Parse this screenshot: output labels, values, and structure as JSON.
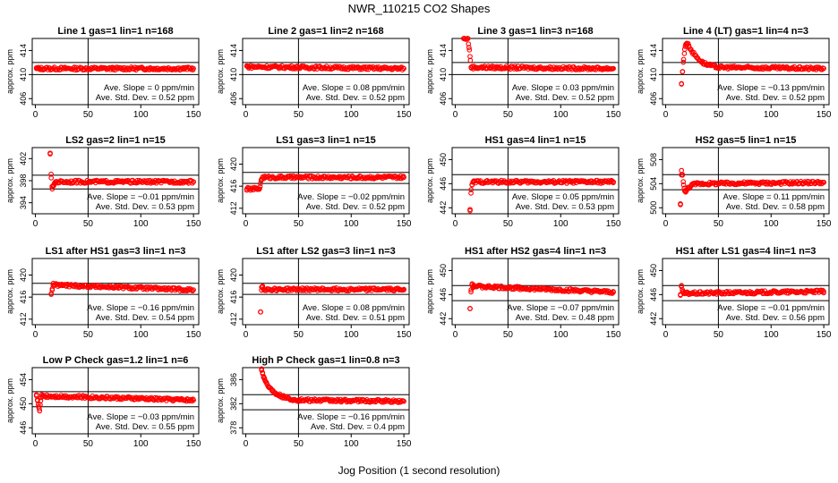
{
  "figure": {
    "title": "NWR_110215  CO2 Shapes",
    "xlabel": "Jog Position (1 second resolution)"
  },
  "colors": {
    "points": "#ff0000",
    "axes": "#000000",
    "background": "#ffffff"
  },
  "chart_data": [
    {
      "type": "scatter",
      "title": "Line 1 gas=1 lin=1 n=168",
      "ylabel": "approx. ppm",
      "xlim": [
        -3,
        155
      ],
      "ylim": [
        405,
        416
      ],
      "xticks": [
        0,
        50,
        100,
        150
      ],
      "yticks": [
        406,
        410,
        414
      ],
      "hlines": [
        410,
        412
      ],
      "vline": 50,
      "slope_text": "Ave. Slope =  0  ppm/min",
      "std_text": "Ave. Std. Dev. =  0.52  ppm",
      "series": [
        {
          "x": [
            1,
            2,
            3,
            4,
            150
          ],
          "y": [
            411.0,
            411.0,
            411.0,
            411.0,
            411.0
          ]
        }
      ]
    },
    {
      "type": "scatter",
      "title": "Line 2 gas=1 lin=2 n=168",
      "ylabel": "approx. ppm",
      "xlim": [
        -3,
        155
      ],
      "ylim": [
        405,
        416
      ],
      "xticks": [
        0,
        50,
        100,
        150
      ],
      "yticks": [
        406,
        410,
        414
      ],
      "hlines": [
        410,
        412
      ],
      "vline": 50,
      "slope_text": "Ave. Slope =  0.08  ppm/min",
      "std_text": "Ave. Std. Dev. =  0.52  ppm",
      "series": [
        {
          "x": [
            1,
            2,
            3,
            150
          ],
          "y": [
            411.4,
            411.3,
            411.3,
            411.0
          ]
        }
      ]
    },
    {
      "type": "scatter",
      "title": "Line 3 gas=1 lin=3 n=168",
      "ylabel": "approx. ppm",
      "xlim": [
        -3,
        155
      ],
      "ylim": [
        405,
        416
      ],
      "xticks": [
        0,
        50,
        100,
        150
      ],
      "yticks": [
        406,
        410,
        414
      ],
      "hlines": [
        410,
        412
      ],
      "vline": 50,
      "slope_text": "Ave. Slope =  0.03  ppm/min",
      "std_text": "Ave. Std. Dev. =  0.52  ppm",
      "series": [
        {
          "x": [
            8,
            12,
            13,
            14,
            15,
            150
          ],
          "y": [
            416.0,
            416.0,
            414.5,
            413.0,
            411.2,
            411.0
          ]
        }
      ]
    },
    {
      "type": "scatter",
      "title": "Line 4 (LT) gas=1 lin=4 n=3",
      "ylabel": "approx. ppm",
      "xlim": [
        -3,
        155
      ],
      "ylim": [
        405,
        416
      ],
      "xticks": [
        0,
        50,
        100,
        150
      ],
      "yticks": [
        406,
        410,
        414
      ],
      "hlines": [
        410,
        412
      ],
      "vline": 50,
      "slope_text": "Ave. Slope = −0.13  ppm/min",
      "std_text": "Ave. Std. Dev. =  0.52  ppm",
      "series": [
        {
          "x": [
            15,
            16,
            17,
            18,
            19,
            20,
            22,
            25,
            30,
            35,
            40,
            50,
            150
          ],
          "y": [
            408.5,
            410.5,
            412.5,
            414.2,
            415.0,
            415.2,
            414.8,
            413.8,
            412.8,
            412.0,
            411.6,
            411.2,
            411.0
          ]
        }
      ]
    },
    {
      "type": "scatter",
      "title": "LS2 gas=2 lin=1 n=15",
      "ylabel": "approx. ppm",
      "xlim": [
        -3,
        155
      ],
      "ylim": [
        392,
        404
      ],
      "xticks": [
        0,
        50,
        100,
        150
      ],
      "yticks": [
        394,
        398,
        402
      ],
      "hlines": [
        396.5,
        399
      ],
      "vline": 50,
      "slope_text": "Ave. Slope = −0.01  ppm/min",
      "std_text": "Ave. Std. Dev. =  0.53  ppm",
      "series": [
        {
          "x": [
            14,
            15,
            16,
            17,
            18,
            19,
            20,
            150
          ],
          "y": [
            403.0,
            398.5,
            396.5,
            397.0,
            397.5,
            397.8,
            397.8,
            397.8
          ]
        }
      ]
    },
    {
      "type": "scatter",
      "title": "LS1 gas=3 lin=1 n=15",
      "ylabel": "approx. ppm",
      "xlim": [
        -3,
        155
      ],
      "ylim": [
        411,
        423
      ],
      "xticks": [
        0,
        50,
        100,
        150
      ],
      "yticks": [
        412,
        416,
        420
      ],
      "hlines": [
        416.5,
        418.5
      ],
      "vline": 50,
      "slope_text": "Ave. Slope = −0.02  ppm/min",
      "std_text": "Ave. Std. Dev. =  0.52  ppm",
      "series": [
        {
          "x": [
            1,
            5,
            10,
            13,
            14,
            15,
            16,
            150
          ],
          "y": [
            415.5,
            415.5,
            415.5,
            415.5,
            416.5,
            417.3,
            417.6,
            417.6
          ]
        }
      ]
    },
    {
      "type": "scatter",
      "title": "HS1 gas=4 lin=1 n=15",
      "ylabel": "approx. ppm",
      "xlim": [
        -3,
        155
      ],
      "ylim": [
        441,
        452
      ],
      "xticks": [
        0,
        50,
        100,
        150
      ],
      "yticks": [
        442,
        446,
        450
      ],
      "hlines": [
        445,
        447.5
      ],
      "vline": 50,
      "slope_text": "Ave. Slope =  0.05  ppm/min",
      "std_text": "Ave. Std. Dev. =  0.53  ppm",
      "series": [
        {
          "x": [
            14,
            15,
            16,
            17,
            150
          ],
          "y": [
            441.5,
            445.0,
            445.8,
            446.3,
            446.3
          ]
        }
      ]
    },
    {
      "type": "scatter",
      "title": "HS2 gas=5 lin=1 n=15",
      "ylabel": "approx. ppm",
      "xlim": [
        -3,
        155
      ],
      "ylim": [
        499,
        510
      ],
      "xticks": [
        0,
        50,
        100,
        150
      ],
      "yticks": [
        500,
        504,
        508
      ],
      "hlines": [
        503,
        505.5
      ],
      "vline": 50,
      "slope_text": "Ave. Slope =  0.11  ppm/min",
      "std_text": "Ave. Std. Dev. =  0.58  ppm",
      "series": [
        {
          "x": [
            14,
            15,
            16,
            17,
            18,
            19,
            20,
            22,
            25,
            30,
            150
          ],
          "y": [
            500.5,
            506.2,
            505.5,
            503.8,
            502.8,
            502.6,
            503.0,
            503.4,
            503.8,
            504.0,
            504.2
          ]
        }
      ]
    },
    {
      "type": "scatter",
      "title": "LS1 after HS1 gas=3 lin=1 n=3",
      "ylabel": "approx. ppm",
      "xlim": [
        -3,
        155
      ],
      "ylim": [
        411,
        423
      ],
      "xticks": [
        0,
        50,
        100,
        150
      ],
      "yticks": [
        412,
        416,
        420
      ],
      "hlines": [
        416.5,
        418.5
      ],
      "vline": 50,
      "slope_text": "Ave. Slope = −0.16  ppm/min",
      "std_text": "Ave. Std. Dev. =  0.54  ppm",
      "series": [
        {
          "x": [
            15,
            16,
            17,
            18,
            150
          ],
          "y": [
            416.5,
            417.5,
            418.5,
            418.2,
            417.3
          ]
        }
      ]
    },
    {
      "type": "scatter",
      "title": "LS1 after LS2 gas=3 lin=1 n=3",
      "ylabel": "approx. ppm",
      "xlim": [
        -3,
        155
      ],
      "ylim": [
        411,
        423
      ],
      "xticks": [
        0,
        50,
        100,
        150
      ],
      "yticks": [
        412,
        416,
        420
      ],
      "hlines": [
        416.5,
        418.5
      ],
      "vline": 50,
      "slope_text": "Ave. Slope =  0.08  ppm/min",
      "std_text": "Ave. Std. Dev. =  0.51  ppm",
      "series": [
        {
          "x": [
            14,
            15,
            16,
            17,
            150
          ],
          "y": [
            413.3,
            417.8,
            418.0,
            417.4,
            417.4
          ]
        }
      ]
    },
    {
      "type": "scatter",
      "title": "HS1 after HS2 gas=4 lin=1 n=3",
      "ylabel": "approx. ppm",
      "xlim": [
        -3,
        155
      ],
      "ylim": [
        441,
        452
      ],
      "xticks": [
        0,
        50,
        100,
        150
      ],
      "yticks": [
        442,
        446,
        450
      ],
      "hlines": [
        445,
        447.5
      ],
      "vline": 50,
      "slope_text": "Ave. Slope = −0.07  ppm/min",
      "std_text": "Ave. Std. Dev. =  0.48  ppm",
      "series": [
        {
          "x": [
            14,
            15,
            16,
            17,
            18,
            150
          ],
          "y": [
            443.7,
            446.8,
            447.8,
            447.2,
            447.4,
            446.4
          ]
        }
      ]
    },
    {
      "type": "scatter",
      "title": "HS1 after LS1 gas=4 lin=1 n=3",
      "ylabel": "approx. ppm",
      "xlim": [
        -3,
        155
      ],
      "ylim": [
        441,
        452
      ],
      "xticks": [
        0,
        50,
        100,
        150
      ],
      "yticks": [
        442,
        446,
        450
      ],
      "hlines": [
        445,
        447.5
      ],
      "vline": 50,
      "slope_text": "Ave. Slope = −0.01  ppm/min",
      "std_text": "Ave. Std. Dev. =  0.56  ppm",
      "series": [
        {
          "x": [
            14,
            15,
            16,
            17,
            150
          ],
          "y": [
            446.0,
            447.5,
            446.5,
            446.2,
            446.5
          ]
        }
      ]
    },
    {
      "type": "scatter",
      "title": "Low P Check gas=1.2 lin=1 n=6",
      "ylabel": "approx. ppm",
      "xlim": [
        -3,
        155
      ],
      "ylim": [
        445,
        456
      ],
      "xticks": [
        0,
        50,
        100,
        150
      ],
      "yticks": [
        446,
        450,
        454
      ],
      "hlines": [
        449.5,
        452
      ],
      "vline": 50,
      "slope_text": "Ave. Slope = −0.03  ppm/min",
      "std_text": "Ave. Std. Dev. =  0.55  ppm",
      "series": [
        {
          "x": [
            1,
            2,
            3,
            4,
            5,
            6,
            8,
            150
          ],
          "y": [
            451.5,
            450.5,
            449.5,
            448.8,
            450.5,
            451.5,
            451.3,
            450.6
          ]
        }
      ]
    },
    {
      "type": "scatter",
      "title": "High P Check gas=1 lin=0.8 n=3",
      "ylabel": "approx. ppm",
      "xlim": [
        -3,
        155
      ],
      "ylim": [
        377,
        388
      ],
      "xticks": [
        0,
        50,
        100,
        150
      ],
      "yticks": [
        378,
        382,
        386
      ],
      "hlines": [
        381,
        383.5
      ],
      "vline": 50,
      "slope_text": "Ave. Slope = −0.16  ppm/min",
      "std_text": "Ave. Std. Dev. =  0.4  ppm",
      "series": [
        {
          "x": [
            15,
            16,
            17,
            18,
            20,
            22,
            25,
            28,
            32,
            36,
            40,
            45,
            50,
            150
          ],
          "y": [
            387.8,
            387.0,
            386.5,
            386.0,
            385.3,
            384.8,
            384.2,
            383.8,
            383.4,
            383.1,
            382.9,
            382.7,
            382.6,
            382.4
          ]
        }
      ]
    }
  ]
}
